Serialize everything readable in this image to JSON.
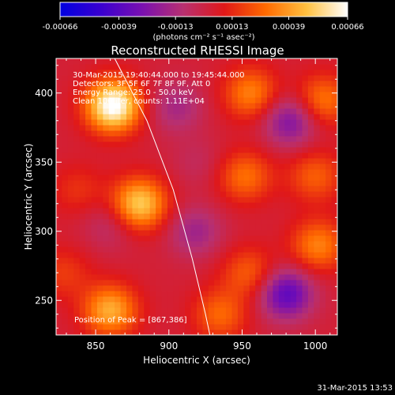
{
  "chart_data": {
    "type": "heatmap",
    "title": "Reconstructed RHESSI Image",
    "xlabel": "Heliocentric X (arcsec)",
    "ylabel": "Heliocentric Y (arcsec)",
    "xlim": [
      823,
      1015
    ],
    "ylim": [
      225,
      425
    ],
    "x_ticks": [
      850,
      900,
      950,
      1000
    ],
    "y_ticks": [
      250,
      300,
      350,
      400
    ],
    "colorbar": {
      "label": "(photons cm⁻² s⁻¹ asec⁻²)",
      "range": [
        -0.00066,
        0.00066
      ],
      "ticks": [
        "-0.00066",
        "-0.00039",
        "-0.00013",
        "0.00013",
        "0.00039",
        "0.00066"
      ],
      "stops": [
        "#0000e0",
        "#3a00d0",
        "#7a10b0",
        "#b83070",
        "#e01818",
        "#ff6a00",
        "#ffc040",
        "#ffffff"
      ]
    },
    "info_lines": [
      "30-Mar-2015 19:40:44.000 to 19:45:44.000",
      "Detectors: 3F 5F 6F 7F 8F 9F, Att 0",
      "Energy Range: 25.0 - 50.0 keV",
      "Clean 100 iter, counts: 1.11E+04"
    ],
    "peak_label": "Position of Peak = [867,386]",
    "peak": [
      867,
      386
    ],
    "sources": [
      {
        "x": 862,
        "y": 391,
        "value": 0.00066
      },
      {
        "x": 880,
        "y": 320,
        "value": 0.00048
      },
      {
        "x": 860,
        "y": 243,
        "value": 0.0004
      },
      {
        "x": 956,
        "y": 400,
        "value": 0.0003
      },
      {
        "x": 952,
        "y": 340,
        "value": 0.00026
      },
      {
        "x": 1005,
        "y": 395,
        "value": 0.00028
      },
      {
        "x": 1000,
        "y": 340,
        "value": 0.00022
      },
      {
        "x": 1002,
        "y": 290,
        "value": 0.0003
      },
      {
        "x": 955,
        "y": 270,
        "value": 0.00022
      },
      {
        "x": 935,
        "y": 240,
        "value": 0.00024
      },
      {
        "x": 838,
        "y": 330,
        "value": 0.00012
      },
      {
        "x": 828,
        "y": 270,
        "value": 0.00014
      },
      {
        "x": 905,
        "y": 390,
        "value": -0.00018
      },
      {
        "x": 983,
        "y": 380,
        "value": -0.0003
      },
      {
        "x": 980,
        "y": 255,
        "value": -0.0004
      },
      {
        "x": 918,
        "y": 300,
        "value": -0.0002
      },
      {
        "x": 860,
        "y": 305,
        "value": -0.00012
      },
      {
        "x": 920,
        "y": 350,
        "value": -8e-05
      }
    ],
    "limb_curve": [
      [
        863,
        425
      ],
      [
        885,
        380
      ],
      [
        903,
        330
      ],
      [
        916,
        280
      ],
      [
        925,
        240
      ],
      [
        928,
        225
      ]
    ]
  },
  "footer": {
    "timestamp": "31-Mar-2015 13:53"
  }
}
